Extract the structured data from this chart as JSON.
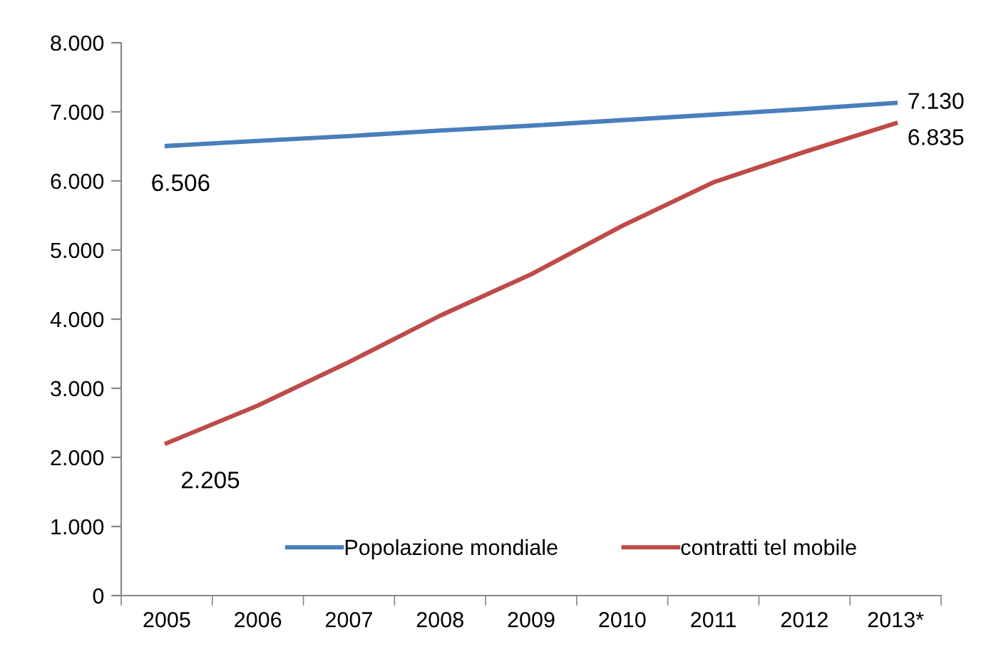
{
  "chart_data": {
    "type": "line",
    "categories": [
      "2005",
      "2006",
      "2007",
      "2008",
      "2009",
      "2010",
      "2011",
      "2012",
      "2013*"
    ],
    "series": [
      {
        "name": "Popolazione mondiale",
        "color": "#4a7ebb",
        "values": [
          6506,
          6580,
          6650,
          6730,
          6800,
          6880,
          6960,
          7040,
          7130
        ],
        "value_labels": [
          "6.506",
          null,
          null,
          null,
          null,
          null,
          null,
          null,
          "7.130"
        ]
      },
      {
        "name": "contratti tel mobile",
        "color": "#be4b48",
        "values": [
          2205,
          2750,
          3380,
          4050,
          4650,
          5350,
          5980,
          6420,
          6835
        ],
        "value_labels": [
          "2.205",
          null,
          null,
          null,
          null,
          null,
          null,
          null,
          "6.835"
        ]
      }
    ],
    "ylim": [
      0,
      8000
    ],
    "yticks": [
      0,
      {
        "value": 1000,
        "label": "1.000"
      },
      {
        "value": 2000,
        "label": "2.000"
      },
      {
        "value": 3000,
        "label": "3.000"
      },
      {
        "value": 4000,
        "label": "4.000"
      },
      {
        "value": 5000,
        "label": "5.000"
      },
      {
        "value": 6000,
        "label": "6.000"
      },
      {
        "value": 7000,
        "label": "7.000"
      },
      {
        "value": 8000,
        "label": "8.000"
      }
    ],
    "grid": false,
    "legend": "bottom",
    "marker": "none",
    "line_style": "solid"
  }
}
